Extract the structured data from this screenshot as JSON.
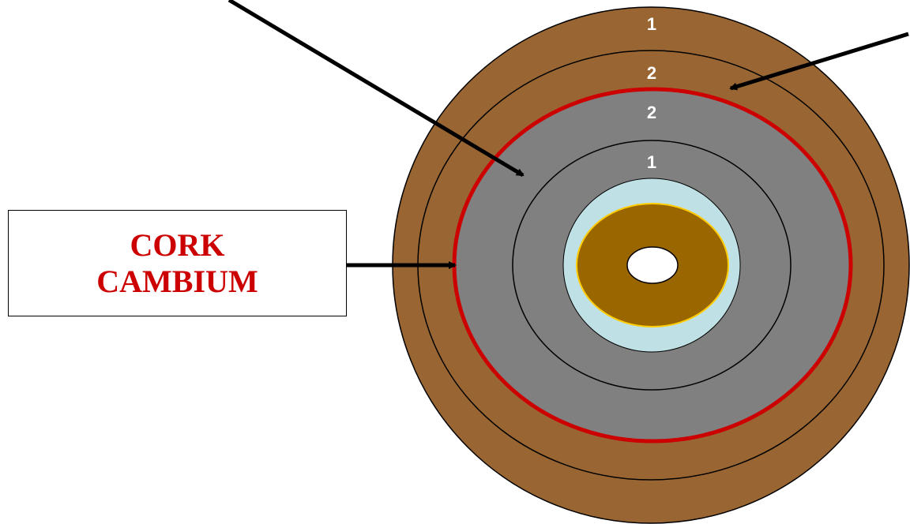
{
  "colors": {
    "outer_bark": "#996633",
    "cork_cambium_line": "#cc0000",
    "secondary_phloem": "#808080",
    "vascular_cambium_zone": "#bfe0e4",
    "xylem": "#996600",
    "xylem_outline": "#ffcc00",
    "pith": "#ffffff",
    "ring_outline": "#000000",
    "arrow": "#000000"
  },
  "ring_labels": {
    "outer_1": "1",
    "outer_2": "2",
    "inner_2": "2",
    "inner_1": "1"
  },
  "callout": {
    "line1": "CORK",
    "line2": "CAMBIUM"
  }
}
